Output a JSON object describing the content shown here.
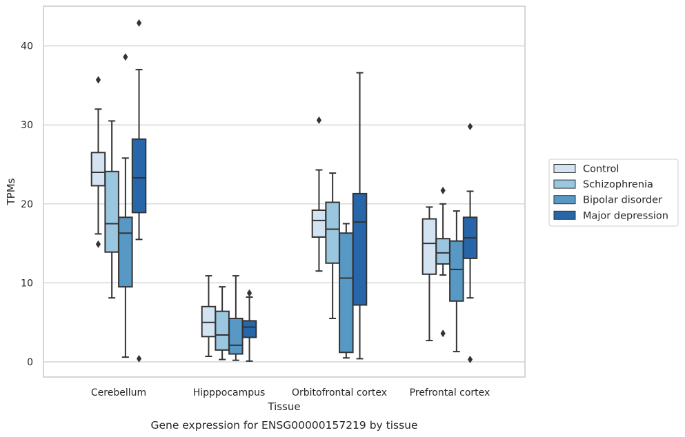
{
  "chart_data": {
    "type": "box",
    "title": "Gene expression for ENSG00000157219 by tissue",
    "xlabel": "Tissue",
    "ylabel": "TPMs",
    "ylim": [
      -2,
      45
    ],
    "yticks": [
      0,
      10,
      20,
      30,
      40
    ],
    "grid": true,
    "legend_position": "right",
    "categories": [
      "Cerebellum",
      "Hipppocampus",
      "Orbitofrontal cortex",
      "Prefrontal cortex"
    ],
    "series": [
      {
        "name": "Control",
        "color": "#d4e3f2",
        "boxes": [
          {
            "whislo": 16.2,
            "q1": 22.3,
            "med": 24.0,
            "q3": 26.5,
            "whishi": 32.0,
            "fliers": [
              35.7,
              14.9
            ]
          },
          {
            "whislo": 0.7,
            "q1": 3.2,
            "med": 5.0,
            "q3": 7.0,
            "whishi": 10.9,
            "fliers": []
          },
          {
            "whislo": 11.5,
            "q1": 15.8,
            "med": 17.9,
            "q3": 19.2,
            "whishi": 24.3,
            "fliers": [
              30.6
            ]
          },
          {
            "whislo": 2.7,
            "q1": 11.1,
            "med": 15.0,
            "q3": 18.1,
            "whishi": 19.6,
            "fliers": []
          }
        ]
      },
      {
        "name": "Schizophrenia",
        "color": "#9ac6df",
        "boxes": [
          {
            "whislo": 8.1,
            "q1": 13.9,
            "med": 17.5,
            "q3": 24.1,
            "whishi": 30.5,
            "fliers": []
          },
          {
            "whislo": 0.3,
            "q1": 1.5,
            "med": 3.4,
            "q3": 6.4,
            "whishi": 9.5,
            "fliers": []
          },
          {
            "whislo": 5.5,
            "q1": 12.5,
            "med": 16.8,
            "q3": 20.2,
            "whishi": 23.9,
            "fliers": []
          },
          {
            "whislo": 11.0,
            "q1": 12.4,
            "med": 13.8,
            "q3": 15.6,
            "whishi": 20.0,
            "fliers": [
              21.7,
              3.6
            ]
          }
        ]
      },
      {
        "name": "Bipolar disorder",
        "color": "#5898c5",
        "boxes": [
          {
            "whislo": 0.6,
            "q1": 9.5,
            "med": 16.3,
            "q3": 18.3,
            "whishi": 25.8,
            "fliers": [
              38.6
            ]
          },
          {
            "whislo": 0.2,
            "q1": 1.0,
            "med": 2.1,
            "q3": 5.5,
            "whishi": 10.9,
            "fliers": []
          },
          {
            "whislo": 0.5,
            "q1": 1.2,
            "med": 10.6,
            "q3": 16.3,
            "whishi": 17.5,
            "fliers": []
          },
          {
            "whislo": 1.3,
            "q1": 7.7,
            "med": 11.7,
            "q3": 15.3,
            "whishi": 19.1,
            "fliers": []
          }
        ]
      },
      {
        "name": "Major depression",
        "color": "#2766a8",
        "boxes": [
          {
            "whislo": 15.5,
            "q1": 18.9,
            "med": 23.3,
            "q3": 28.2,
            "whishi": 37.0,
            "fliers": [
              42.9,
              0.4
            ]
          },
          {
            "whislo": 0.1,
            "q1": 3.1,
            "med": 4.4,
            "q3": 5.2,
            "whishi": 8.2,
            "fliers": [
              8.7
            ]
          },
          {
            "whislo": 0.4,
            "q1": 7.2,
            "med": 17.7,
            "q3": 21.3,
            "whishi": 36.6,
            "fliers": []
          },
          {
            "whislo": 8.1,
            "q1": 13.1,
            "med": 15.7,
            "q3": 18.3,
            "whishi": 21.6,
            "fliers": [
              29.8,
              0.3
            ]
          }
        ]
      }
    ]
  }
}
